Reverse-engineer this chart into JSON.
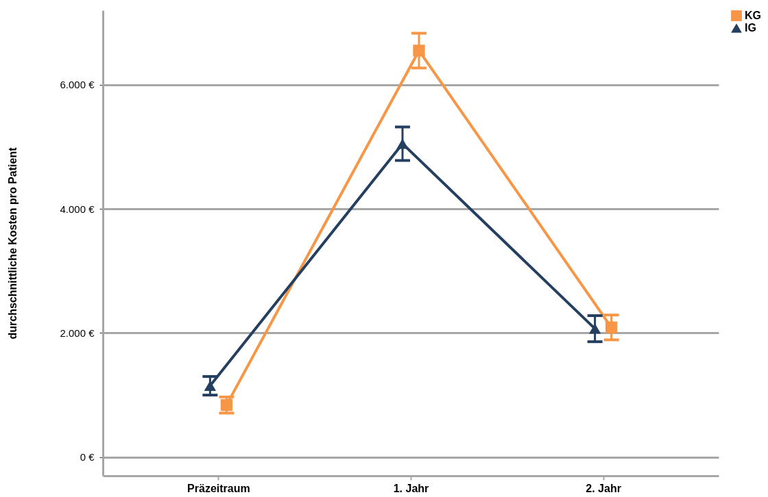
{
  "chart_data": {
    "type": "line",
    "ylabel": "durchschnittliche Kosten pro Patient",
    "categories": [
      "Präzeitraum",
      "1. Jahr",
      "2. Jahr"
    ],
    "series": [
      {
        "name": "KG",
        "color": "#f79646",
        "marker": "square",
        "values": [
          840,
          6550,
          2090
        ],
        "errors": [
          130,
          280,
          200
        ]
      },
      {
        "name": "IG",
        "color": "#243f60",
        "marker": "triangle",
        "values": [
          1150,
          5050,
          2070
        ],
        "errors": [
          150,
          270,
          210
        ]
      }
    ],
    "ylim": [
      -300,
      7200
    ],
    "yticks": [
      {
        "value": 0,
        "label": "0 €"
      },
      {
        "value": 2000,
        "label": "2.000 €"
      },
      {
        "value": 4000,
        "label": "4.000 €"
      },
      {
        "value": 6000,
        "label": "6.000 €"
      }
    ],
    "grid": "y",
    "legend": "right",
    "line_style": "solid"
  }
}
